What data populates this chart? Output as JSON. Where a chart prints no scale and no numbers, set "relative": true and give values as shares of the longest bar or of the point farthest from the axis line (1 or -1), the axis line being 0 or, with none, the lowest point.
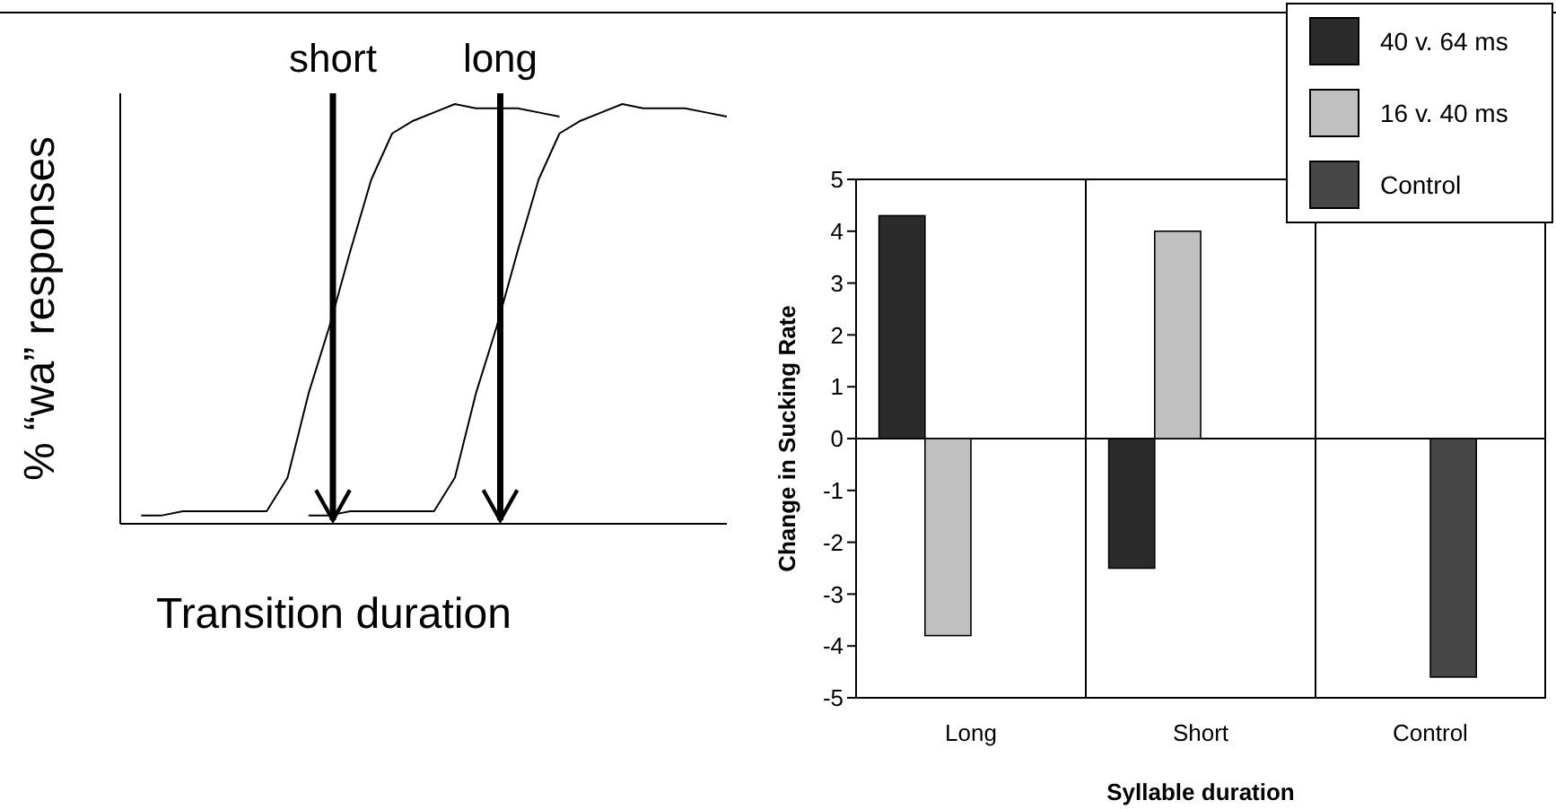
{
  "chart_data": [
    {
      "type": "line",
      "relative": true,
      "xlabel": "Transition duration",
      "ylabel": "% “wa” responses",
      "categories": [
        null,
        null,
        null,
        null,
        null,
        null,
        null,
        null,
        null,
        null,
        null,
        null,
        null,
        null,
        null,
        null,
        null,
        null,
        null,
        null,
        null,
        null,
        null,
        null,
        null,
        null,
        null,
        null,
        null,
        null
      ],
      "series": [
        {
          "color": "#000000",
          "values": [
            null,
            0.02,
            0.02,
            0.03,
            0.03,
            0.03,
            0.03,
            0.03,
            0.11,
            0.31,
            0.47,
            0.65,
            0.82,
            0.93,
            0.96,
            0.98,
            1.0,
            0.99,
            0.99,
            0.99,
            0.98,
            0.97,
            null,
            null,
            null,
            null,
            null,
            null,
            null,
            null
          ]
        },
        {
          "color": "#000000",
          "values": [
            null,
            null,
            null,
            null,
            null,
            null,
            null,
            null,
            null,
            0.02,
            0.02,
            0.03,
            0.03,
            0.03,
            0.03,
            0.03,
            0.11,
            0.31,
            0.47,
            0.65,
            0.82,
            0.93,
            0.96,
            0.98,
            1.0,
            0.99,
            0.99,
            0.99,
            0.98,
            0.97
          ]
        }
      ],
      "annotations": [
        "short",
        "long"
      ]
    },
    {
      "type": "bar",
      "xlabel": "Syllable duration",
      "ylabel": "Change in Sucking Rate",
      "categories": [
        "Long",
        "Short",
        "Control"
      ],
      "ylim": [
        -5,
        5
      ],
      "yticks": [
        -5,
        -4,
        -3,
        -2,
        -1,
        0,
        1,
        2,
        3,
        4,
        5
      ],
      "legend": "top right",
      "series": [
        {
          "name": "40 v. 64 ms",
          "color": "#2b2b2b",
          "values": [
            4.3,
            -2.5,
            null
          ]
        },
        {
          "name": "16 v. 40 ms",
          "color": "#c0c0c0",
          "values": [
            -3.8,
            4.0,
            null
          ]
        },
        {
          "name": "Control",
          "color": "#474747",
          "values": [
            null,
            null,
            -4.6
          ]
        }
      ]
    }
  ]
}
